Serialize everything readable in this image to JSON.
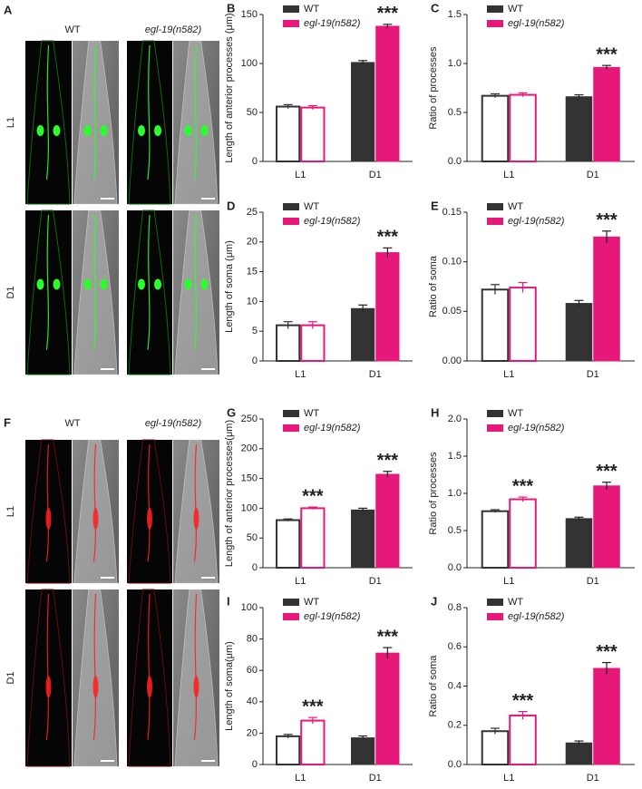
{
  "image_panels": [
    {
      "label": "A",
      "columns": [
        "WT",
        "egl-19(n582)"
      ],
      "rows": [
        "L1",
        "D1"
      ],
      "channel": "green"
    },
    {
      "label": "F",
      "columns": [
        "WT",
        "egl-19(n582)"
      ],
      "rows": [
        "L1",
        "D1"
      ],
      "channel": "red"
    }
  ],
  "chart_data": [
    {
      "type": "bar",
      "panel": "B",
      "ylabel": "Length of anterior processes (μm)",
      "categories": [
        "L1",
        "D1"
      ],
      "ylim": [
        0,
        150
      ],
      "yticks": [
        0,
        50,
        100,
        150
      ],
      "fill": [
        "outline",
        "solid"
      ],
      "legend": "top-left",
      "series": [
        {
          "name": "WT",
          "color": "#333333",
          "values": [
            56,
            101
          ],
          "errors": [
            2,
            2
          ]
        },
        {
          "name": "egl-19(n582)",
          "color": "#e6197a",
          "font_style": "italic",
          "values": [
            55,
            138
          ],
          "errors": [
            2,
            2
          ],
          "significance": [
            null,
            "***"
          ]
        }
      ]
    },
    {
      "type": "bar",
      "panel": "C",
      "ylabel": "Ratio of processes",
      "categories": [
        "L1",
        "D1"
      ],
      "ylim": [
        0,
        1.5
      ],
      "yticks": [
        {
          "value": 0,
          "label": "0.0"
        },
        0.5,
        {
          "value": 1,
          "label": "1.0"
        },
        1.5
      ],
      "fill": [
        "outline",
        "solid"
      ],
      "legend": "top-left",
      "series": [
        {
          "name": "WT",
          "color": "#333333",
          "values": [
            0.67,
            0.66
          ],
          "errors": [
            0.02,
            0.02
          ]
        },
        {
          "name": "egl-19(n582)",
          "color": "#e6197a",
          "font_style": "italic",
          "values": [
            0.68,
            0.96
          ],
          "errors": [
            0.02,
            0.02
          ],
          "significance": [
            null,
            "***"
          ]
        }
      ]
    },
    {
      "type": "bar",
      "panel": "D",
      "ylabel": "Length of soma (μm)",
      "categories": [
        "L1",
        "D1"
      ],
      "ylim": [
        0,
        25
      ],
      "yticks": [
        0,
        5,
        10,
        15,
        20,
        25
      ],
      "fill": [
        "outline",
        "solid"
      ],
      "legend": "top-left",
      "series": [
        {
          "name": "WT",
          "color": "#333333",
          "values": [
            6,
            8.8
          ],
          "errors": [
            0.6,
            0.6
          ]
        },
        {
          "name": "egl-19(n582)",
          "color": "#e6197a",
          "font_style": "italic",
          "values": [
            6,
            18.2
          ],
          "errors": [
            0.6,
            0.8
          ],
          "significance": [
            null,
            "***"
          ]
        }
      ]
    },
    {
      "type": "bar",
      "panel": "E",
      "ylabel": "Ratio of soma",
      "categories": [
        "L1",
        "D1"
      ],
      "ylim": [
        0,
        0.15
      ],
      "yticks": [
        {
          "value": 0,
          "label": "0.00"
        },
        {
          "value": 0.05,
          "label": "0.05"
        },
        {
          "value": 0.1,
          "label": "0.10"
        },
        {
          "value": 0.15,
          "label": "0.15"
        }
      ],
      "fill": [
        "outline",
        "solid"
      ],
      "legend": "top-left",
      "series": [
        {
          "name": "WT",
          "color": "#333333",
          "values": [
            0.072,
            0.058
          ],
          "errors": [
            0.005,
            0.003
          ]
        },
        {
          "name": "egl-19(n582)",
          "color": "#e6197a",
          "font_style": "italic",
          "values": [
            0.074,
            0.125
          ],
          "errors": [
            0.005,
            0.006
          ],
          "significance": [
            null,
            "***"
          ]
        }
      ]
    },
    {
      "type": "bar",
      "panel": "G",
      "ylabel": "Length of anterior processes(μm)",
      "categories": [
        "L1",
        "D1"
      ],
      "ylim": [
        0,
        250
      ],
      "yticks": [
        0,
        50,
        100,
        150,
        200,
        250
      ],
      "fill": [
        "outline",
        "solid"
      ],
      "legend": "top-left",
      "series": [
        {
          "name": "WT",
          "color": "#333333",
          "values": [
            80,
            97
          ],
          "errors": [
            2,
            3
          ]
        },
        {
          "name": "egl-19(n582)",
          "color": "#e6197a",
          "font_style": "italic",
          "values": [
            100,
            157
          ],
          "errors": [
            2,
            5
          ],
          "significance": [
            "***",
            "***"
          ]
        }
      ]
    },
    {
      "type": "bar",
      "panel": "H",
      "ylabel": "Ratio of processes",
      "categories": [
        "L1",
        "D1"
      ],
      "ylim": [
        0,
        2.0
      ],
      "yticks": [
        {
          "value": 0,
          "label": "0.0"
        },
        0.5,
        {
          "value": 1,
          "label": "1.0"
        },
        1.5,
        {
          "value": 2,
          "label": "2.0"
        }
      ],
      "fill": [
        "outline",
        "solid"
      ],
      "legend": "top-left",
      "series": [
        {
          "name": "WT",
          "color": "#333333",
          "values": [
            0.76,
            0.66
          ],
          "errors": [
            0.02,
            0.02
          ]
        },
        {
          "name": "egl-19(n582)",
          "color": "#e6197a",
          "font_style": "italic",
          "values": [
            0.92,
            1.1
          ],
          "errors": [
            0.03,
            0.05
          ],
          "significance": [
            "***",
            "***"
          ]
        }
      ]
    },
    {
      "type": "bar",
      "panel": "I",
      "ylabel": "Length of soma(μm)",
      "categories": [
        "L1",
        "D1"
      ],
      "ylim": [
        0,
        100
      ],
      "yticks": [
        0,
        20,
        40,
        60,
        80,
        100
      ],
      "fill": [
        "outline",
        "solid"
      ],
      "legend": "top-left",
      "series": [
        {
          "name": "WT",
          "color": "#333333",
          "values": [
            18,
            17
          ],
          "errors": [
            1.2,
            1.2
          ]
        },
        {
          "name": "egl-19(n582)",
          "color": "#e6197a",
          "font_style": "italic",
          "values": [
            28,
            71
          ],
          "errors": [
            2,
            3.5
          ],
          "significance": [
            "***",
            "***"
          ]
        }
      ]
    },
    {
      "type": "bar",
      "panel": "J",
      "ylabel": "Ratio of soma",
      "categories": [
        "L1",
        "D1"
      ],
      "ylim": [
        0,
        0.8
      ],
      "yticks": [
        {
          "value": 0,
          "label": "0.0"
        },
        0.2,
        0.4,
        0.6,
        0.8
      ],
      "fill": [
        "outline",
        "solid"
      ],
      "legend": "top-left",
      "series": [
        {
          "name": "WT",
          "color": "#333333",
          "values": [
            0.17,
            0.11
          ],
          "errors": [
            0.015,
            0.01
          ]
        },
        {
          "name": "egl-19(n582)",
          "color": "#e6197a",
          "font_style": "italic",
          "values": [
            0.25,
            0.49
          ],
          "errors": [
            0.02,
            0.03
          ],
          "significance": [
            "***",
            "***"
          ]
        }
      ]
    }
  ]
}
